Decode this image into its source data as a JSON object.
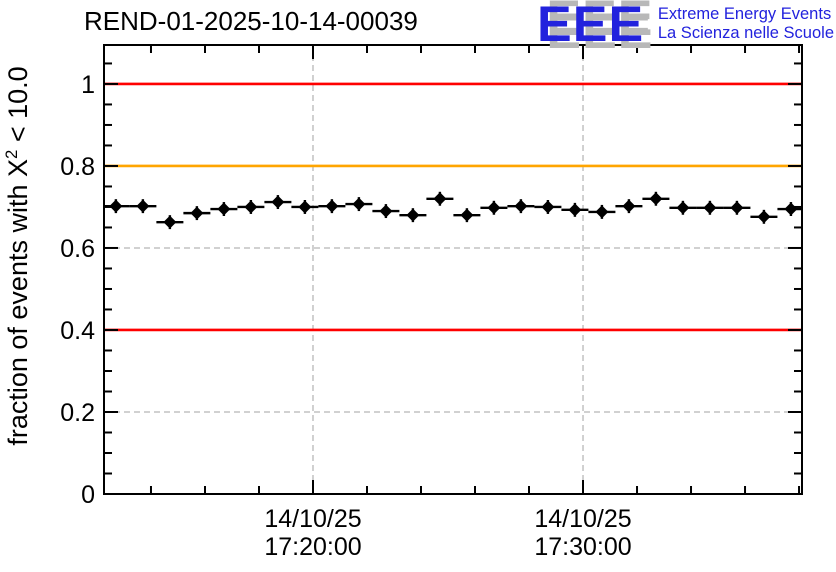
{
  "header": {
    "title": "REND-01-2025-10-14-00039",
    "logo": {
      "acronym": "EEE",
      "line1": "Extreme Energy Events",
      "line2": "La Scienza nelle Scuole",
      "blue": "#2222dd",
      "shadow_gray": "#b8b8b8"
    }
  },
  "chart_data": {
    "type": "scatter",
    "title": "REND-01-2025-10-14-00039",
    "ylabel": {
      "pre": "fraction of events with X",
      "sup": "2",
      "post": " < 10.0"
    },
    "x_axis": {
      "kind": "time",
      "unit": "minutes relative to 14/10/25 17:20:00",
      "t_min": -7.74,
      "t_max": 18.11,
      "minor_tick_step_min": 2,
      "major_ticks": [
        {
          "t": 0,
          "label_line1": "14/10/25",
          "label_line2": "17:20:00"
        },
        {
          "t": 10,
          "label_line1": "14/10/25",
          "label_line2": "17:30:00"
        }
      ]
    },
    "y_axis": {
      "min": 0,
      "max": 1.095,
      "major_step": 0.2,
      "minor_step": 0.05,
      "major_labels": [
        "0",
        "0.2",
        "0.4",
        "0.6",
        "0.8",
        "1"
      ]
    },
    "grid": {
      "show": true,
      "color": "#a3a3a3",
      "dash": "6 4"
    },
    "reference_lines": [
      {
        "y": 1.0,
        "color": "#ff0000"
      },
      {
        "y": 0.8,
        "color": "#ffa500"
      },
      {
        "y": 0.4,
        "color": "#ff0000"
      }
    ],
    "series": [
      {
        "name": "fraction of events with chi2 < 10 per 1-min bin",
        "marker": "filled-diamond",
        "color": "#000000",
        "bin_halfwidth_min": 0.5,
        "yerr": 0.017,
        "points": [
          [
            -7.3,
            0.702
          ],
          [
            -6.3,
            0.702
          ],
          [
            -5.3,
            0.663
          ],
          [
            -4.3,
            0.685
          ],
          [
            -3.3,
            0.695
          ],
          [
            -2.3,
            0.7
          ],
          [
            -1.3,
            0.712
          ],
          [
            -0.3,
            0.7
          ],
          [
            0.7,
            0.702
          ],
          [
            1.7,
            0.707
          ],
          [
            2.7,
            0.69
          ],
          [
            3.7,
            0.68
          ],
          [
            4.7,
            0.72
          ],
          [
            5.7,
            0.68
          ],
          [
            6.7,
            0.698
          ],
          [
            7.7,
            0.702
          ],
          [
            8.7,
            0.7
          ],
          [
            9.7,
            0.693
          ],
          [
            10.7,
            0.688
          ],
          [
            11.7,
            0.702
          ],
          [
            12.7,
            0.72
          ],
          [
            13.7,
            0.698
          ],
          [
            14.7,
            0.698
          ],
          [
            15.7,
            0.698
          ],
          [
            16.7,
            0.676
          ],
          [
            17.7,
            0.695
          ]
        ]
      }
    ]
  }
}
